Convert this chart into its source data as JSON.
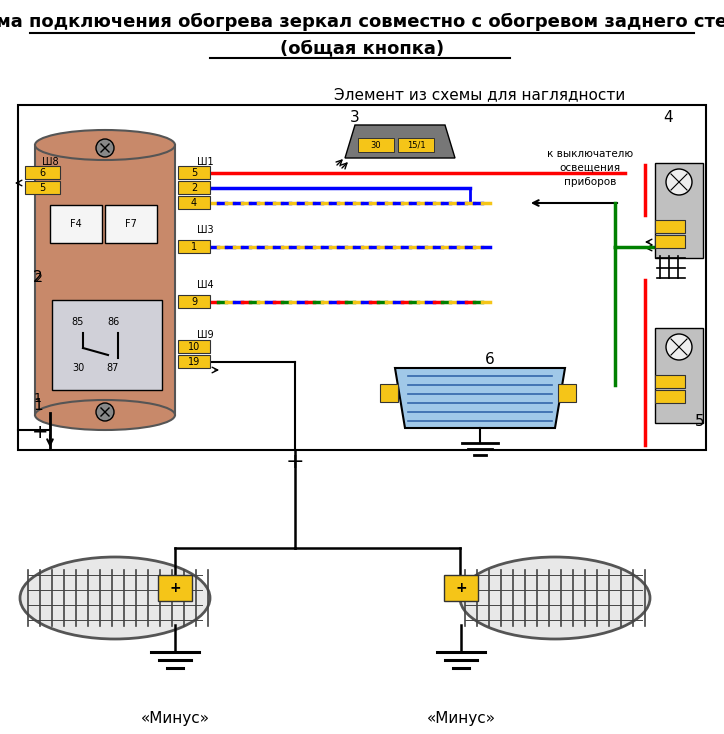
{
  "title_line1": "Схема подключения обогрева зеркал совместно с обогревом заднего стекла",
  "title_line2": "(общая кнопка)",
  "subtitle": "Элемент из схемы для наглядности",
  "minus_label": "«Минус»",
  "plus_label": "+",
  "bg_color": "#ffffff",
  "diagram_bg": "#f0f0f0",
  "title_fontsize": 13,
  "subtitle_fontsize": 11,
  "label_fontsize": 11,
  "fig_width": 7.24,
  "fig_height": 7.34,
  "dpi": 100
}
